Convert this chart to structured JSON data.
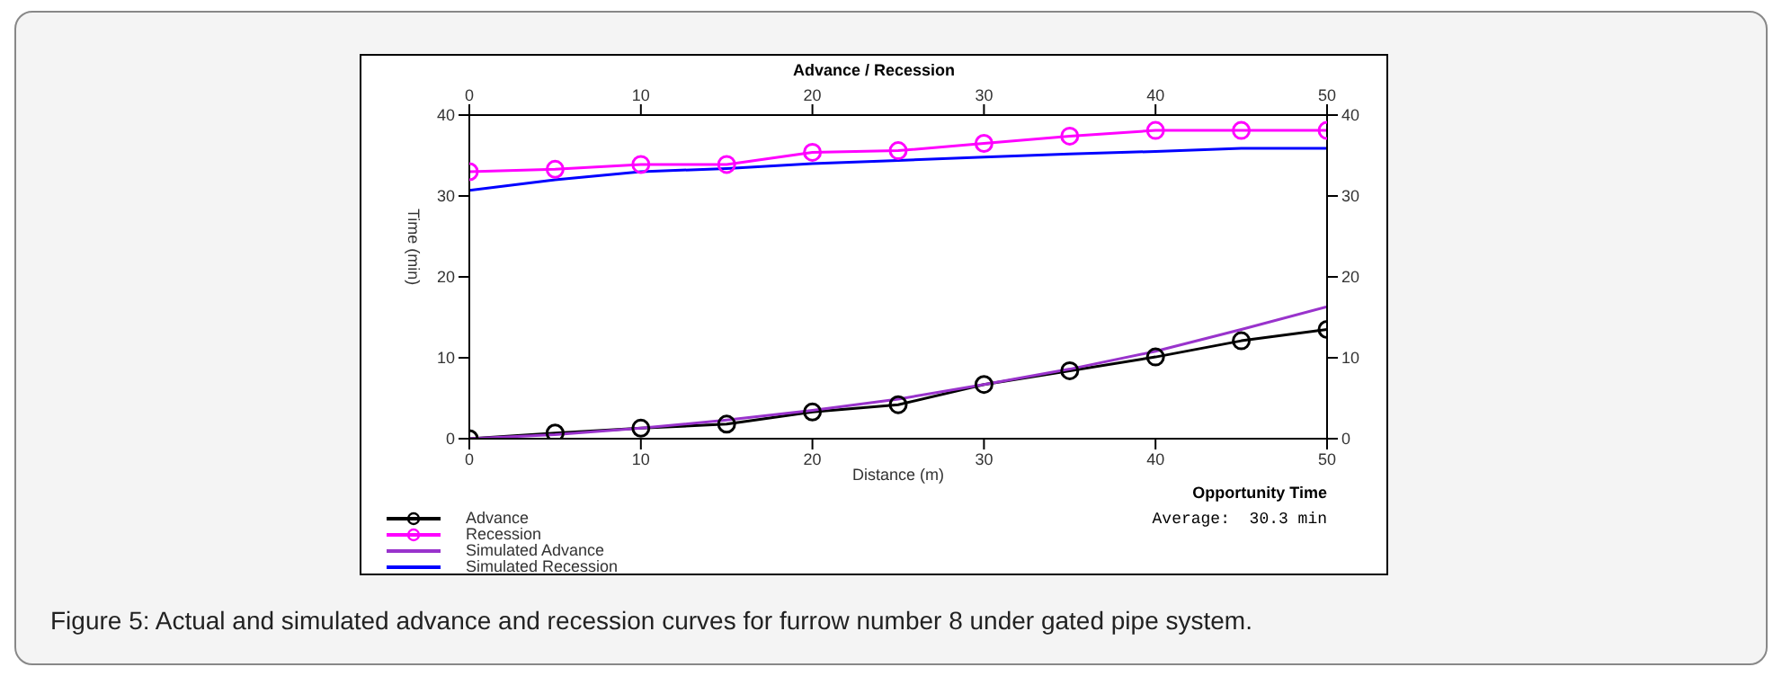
{
  "chart_data": {
    "type": "line",
    "title": "Advance / Recession",
    "xlabel": "Distance (m)",
    "ylabel": "Time (min)",
    "x": [
      0,
      5,
      10,
      15,
      20,
      25,
      30,
      35,
      40,
      45,
      50
    ],
    "series": [
      {
        "name": "Advance",
        "color": "#000000",
        "marker": "circle",
        "values": [
          0,
          0.7,
          1.3,
          1.8,
          3.3,
          4.2,
          6.7,
          8.4,
          10.1,
          12.1,
          13.5
        ]
      },
      {
        "name": "Recession",
        "color": "#ff00ff",
        "marker": "circle",
        "values": [
          33,
          33.3,
          33.9,
          33.9,
          35.4,
          35.6,
          36.5,
          37.4,
          38.1,
          38.1,
          38.1
        ]
      },
      {
        "name": "Simulated Advance",
        "color": "#9933cc",
        "marker": "none",
        "values": [
          0,
          0.5,
          1.3,
          2.3,
          3.5,
          4.9,
          6.7,
          8.6,
          10.8,
          13.5,
          16.3
        ]
      },
      {
        "name": "Simulated Recession",
        "color": "#0000ff",
        "marker": "none",
        "values": [
          30.7,
          32,
          33,
          33.4,
          34,
          34.4,
          34.8,
          35.2,
          35.5,
          35.9,
          35.9
        ]
      }
    ],
    "xlim": [
      0,
      50
    ],
    "xticks": [
      0,
      10,
      20,
      30,
      40,
      50
    ],
    "x2lim": [
      0,
      50
    ],
    "x2ticks": [
      0,
      10,
      20,
      30,
      40,
      50
    ],
    "ylim": [
      0,
      40
    ],
    "yticks": [
      0,
      10,
      20,
      30,
      40
    ],
    "y2lim": [
      0,
      40
    ],
    "y2ticks": [
      0,
      10,
      20,
      30,
      40
    ],
    "grid": false,
    "legend": "bottom left",
    "annotations": [
      "Opportunity Time",
      "Average:  30.3 min",
      "Figure 5: Actual and simulated advance and recession curves for furrow number 8 under gated pipe system."
    ]
  }
}
